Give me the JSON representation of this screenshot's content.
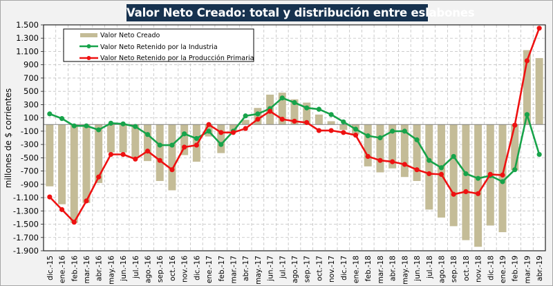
{
  "chart_data": {
    "type": "bar+line",
    "title": "Valor Neto Creado: total y distribución entre eslabones",
    "xlabel": "",
    "ylabel": "millones de $ corrientes",
    "ylim": [
      -1900,
      1500
    ],
    "yticks": [
      1500,
      1300,
      1100,
      900,
      700,
      500,
      300,
      100,
      -100,
      -300,
      -500,
      -700,
      -900,
      -1100,
      -1300,
      -1500,
      -1700,
      -1900
    ],
    "ytick_labels": [
      "1.500",
      "1.300",
      "1.100",
      "900",
      "700",
      "500",
      "300",
      "100",
      "-100",
      "-300",
      "-500",
      "-700",
      "-900",
      "-1.100",
      "-1.300",
      "-1.500",
      "-1.700",
      "-1.900"
    ],
    "grid": true,
    "legend_position": "top-left",
    "categories": [
      "dic.-15",
      "ene.-16",
      "feb.-16",
      "mar.-16",
      "abr.-16",
      "may.-16",
      "jun.-16",
      "jul.-16",
      "ago.-16",
      "sep.-16",
      "oct.-16",
      "nov.-16",
      "dic.-16",
      "ene.-17",
      "feb.-17",
      "mar.-17",
      "abr.-17",
      "may.-17",
      "jun.-17",
      "jul.-17",
      "ago.-17",
      "sep.-17",
      "oct.-17",
      "nov.-17",
      "dic.-17",
      "ene.-18",
      "feb.-18",
      "mar.-18",
      "abr.-18",
      "may.-18",
      "jun.-18",
      "jul.-18",
      "ago.-18",
      "sep.-18",
      "oct.-18",
      "nov.-18",
      "dic.-18",
      "ene.-19",
      "feb.-19",
      "mar.-19",
      "abr.-19"
    ],
    "series": [
      {
        "name": "Valor Neto Creado",
        "kind": "bar",
        "color": "#c4bc97",
        "values": [
          -930,
          -1200,
          -1480,
          -1180,
          -880,
          -420,
          -420,
          -500,
          -550,
          -850,
          -990,
          -460,
          -560,
          -180,
          -430,
          -100,
          70,
          250,
          450,
          480,
          380,
          330,
          150,
          50,
          -80,
          -150,
          -630,
          -720,
          -660,
          -790,
          -850,
          -1280,
          -1400,
          -1530,
          -1740,
          -1840,
          -1520,
          -1620,
          -690,
          1120,
          1000
        ]
      },
      {
        "name": "Valor Neto Retenido por la Industria",
        "kind": "line",
        "color": "#17a34a",
        "values": [
          160,
          90,
          -20,
          -20,
          -80,
          20,
          10,
          -30,
          -150,
          -310,
          -310,
          -140,
          -210,
          -100,
          -300,
          -100,
          130,
          160,
          240,
          400,
          330,
          250,
          230,
          150,
          40,
          -70,
          -170,
          -200,
          -100,
          -100,
          -230,
          -540,
          -650,
          -480,
          -740,
          -810,
          -770,
          -860,
          -680,
          150,
          -450
        ]
      },
      {
        "name": "Valor Neto Retenido por la Producción Primaria",
        "kind": "line",
        "color": "#ee1111",
        "values": [
          -1090,
          -1280,
          -1470,
          -1150,
          -790,
          -450,
          -450,
          -520,
          -400,
          -540,
          -680,
          -340,
          -310,
          0,
          -120,
          -120,
          -60,
          80,
          200,
          80,
          50,
          30,
          -90,
          -90,
          -120,
          -160,
          -480,
          -540,
          -560,
          -600,
          -680,
          -740,
          -750,
          -1050,
          -1010,
          -1040,
          -750,
          -760,
          -10,
          960,
          1450
        ]
      }
    ]
  }
}
